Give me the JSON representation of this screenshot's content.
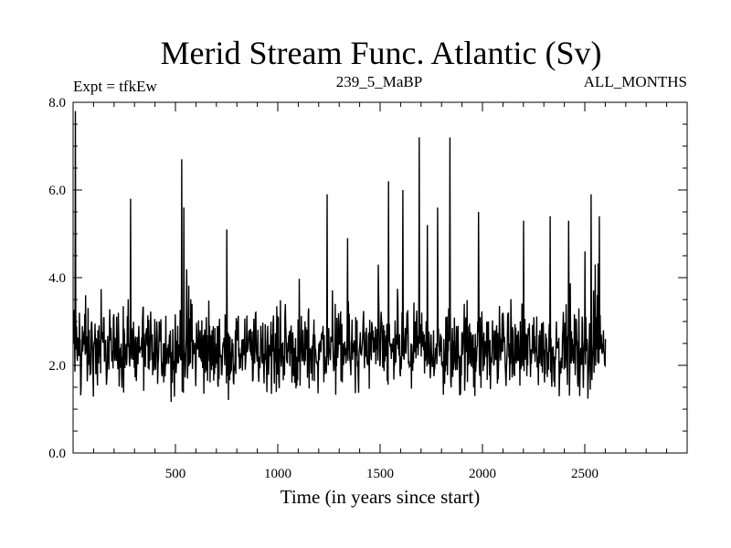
{
  "chart_data": {
    "type": "line",
    "title": "Merid Stream Func. Atlantic (Sv)",
    "subtitle_left": "Expt = tfkEw",
    "subtitle_center": "239_5_MaBP",
    "subtitle_right": "ALL_MONTHS",
    "xlabel": "Time (in years since start)",
    "ylabel": "",
    "xlim": [
      0,
      3000
    ],
    "ylim": [
      0,
      8
    ],
    "xticks": [
      500,
      1000,
      1500,
      2000,
      2500
    ],
    "xtick_labels": [
      "500",
      "1000",
      "1500",
      "2000",
      "2500"
    ],
    "yticks": [
      0,
      2,
      4,
      6,
      8
    ],
    "ytick_labels": [
      "0.0",
      "2.0",
      "4.0",
      "6.0",
      "8.0"
    ],
    "grid": false,
    "series": [
      {
        "x_start": 1,
        "x_step": 10,
        "values": [
          2.6,
          7.8,
          2.1,
          3.2,
          2.2,
          2.5,
          3.6,
          1.9,
          2.3,
          3.0,
          2.4,
          1.8,
          2.8,
          2.2,
          2.6,
          3.1,
          2.0,
          2.4,
          2.9,
          2.3,
          2.5,
          2.1,
          3.2,
          2.4,
          2.2,
          2.7,
          2.0,
          2.5,
          5.8,
          2.3,
          2.6,
          2.1,
          2.9,
          2.4,
          3.3,
          2.2,
          2.5,
          1.9,
          2.8,
          2.3,
          2.1,
          2.6,
          3.0,
          2.2,
          2.5,
          2.0,
          2.4,
          2.7,
          2.3,
          2.1,
          2.5,
          2.9,
          2.2,
          6.7,
          5.6,
          2.4,
          2.1,
          2.6,
          3.4,
          2.3,
          2.0,
          2.5,
          2.8,
          2.2,
          2.4,
          3.1,
          2.1,
          2.6,
          2.3,
          1.8,
          2.5,
          2.9,
          2.2,
          2.4,
          2.0,
          5.1,
          2.7,
          2.3,
          2.5,
          2.1,
          3.0,
          2.4,
          2.2,
          2.6,
          1.9,
          2.3,
          2.8,
          2.5,
          2.1,
          3.2,
          2.4,
          2.2,
          2.6,
          2.0,
          2.5,
          2.9,
          2.3,
          2.1,
          2.4,
          2.7,
          3.1,
          2.2,
          2.5,
          2.0,
          2.6,
          2.3,
          2.8,
          2.1,
          2.4,
          2.2,
          3.0,
          2.5,
          2.3,
          2.0,
          2.6,
          3.3,
          2.2,
          2.4,
          2.7,
          2.1,
          2.5,
          2.3,
          2.9,
          2.2,
          5.9,
          2.4,
          2.6,
          2.1,
          3.4,
          2.3,
          2.5,
          2.8,
          2.0,
          2.4,
          4.9,
          2.2,
          2.6,
          2.3,
          3.1,
          2.1,
          2.5,
          2.4,
          2.7,
          2.2,
          2.0,
          2.6,
          2.9,
          2.3,
          2.5,
          4.3,
          2.1,
          2.4,
          2.8,
          2.2,
          6.2,
          2.5,
          2.3,
          2.0,
          2.7,
          2.4,
          2.2,
          6.0,
          2.6,
          3.2,
          2.1,
          2.5,
          2.3,
          3.0,
          2.4,
          7.2,
          2.2,
          2.6,
          2.1,
          5.2,
          2.5,
          2.3,
          2.8,
          2.4,
          5.6,
          2.2,
          2.0,
          2.6,
          3.1,
          2.3,
          7.2,
          2.5,
          2.1,
          2.4,
          2.9,
          2.2,
          2.6,
          3.4,
          2.3,
          2.0,
          2.5,
          2.7,
          2.4,
          2.1,
          5.5,
          2.3,
          2.6,
          2.2,
          3.0,
          2.4,
          2.1,
          2.5,
          2.8,
          2.3,
          2.2,
          2.6,
          3.2,
          2.0,
          2.4,
          2.5,
          2.9,
          2.3,
          2.1,
          2.7,
          2.4,
          2.2,
          5.3,
          2.6,
          2.0,
          2.5,
          2.3,
          3.1,
          2.4,
          2.2,
          2.8,
          2.5,
          2.1,
          2.6,
          2.3,
          5.4,
          2.4,
          2.2,
          3.0,
          2.5,
          2.1,
          2.7,
          2.3,
          2.4,
          5.3,
          2.6,
          2.2,
          2.9,
          2.5,
          3.3,
          2.4,
          2.1,
          4.6,
          2.6,
          2.3,
          5.9,
          2.5,
          4.3,
          3.6,
          5.4,
          2.7,
          2.8,
          2.6
        ]
      }
    ]
  }
}
